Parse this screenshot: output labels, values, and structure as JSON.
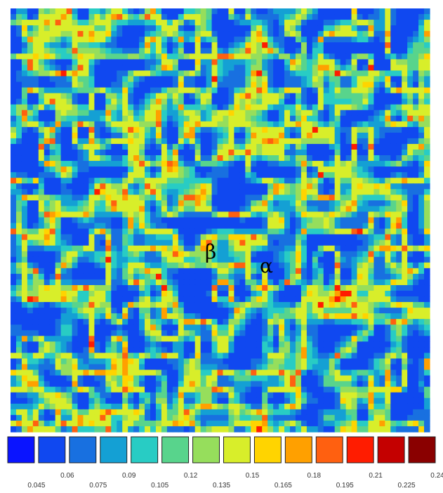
{
  "annotations": {
    "beta": "β",
    "alpha": "α"
  },
  "colorbar": {
    "colors": [
      "#0a14ff",
      "#1048f0",
      "#1870e0",
      "#14a0d4",
      "#28ccc4",
      "#58d48c",
      "#96de5c",
      "#d8ee2a",
      "#ffd400",
      "#ffa000",
      "#ff6010",
      "#ff1c00",
      "#c40000",
      "#8a0000"
    ],
    "labels": [
      "0.045",
      "0.06",
      "0.075",
      "0.09",
      "0.105",
      "0.12",
      "0.135",
      "0.15",
      "0.165",
      "0.18",
      "0.195",
      "0.21",
      "0.225",
      "0.24"
    ]
  }
}
